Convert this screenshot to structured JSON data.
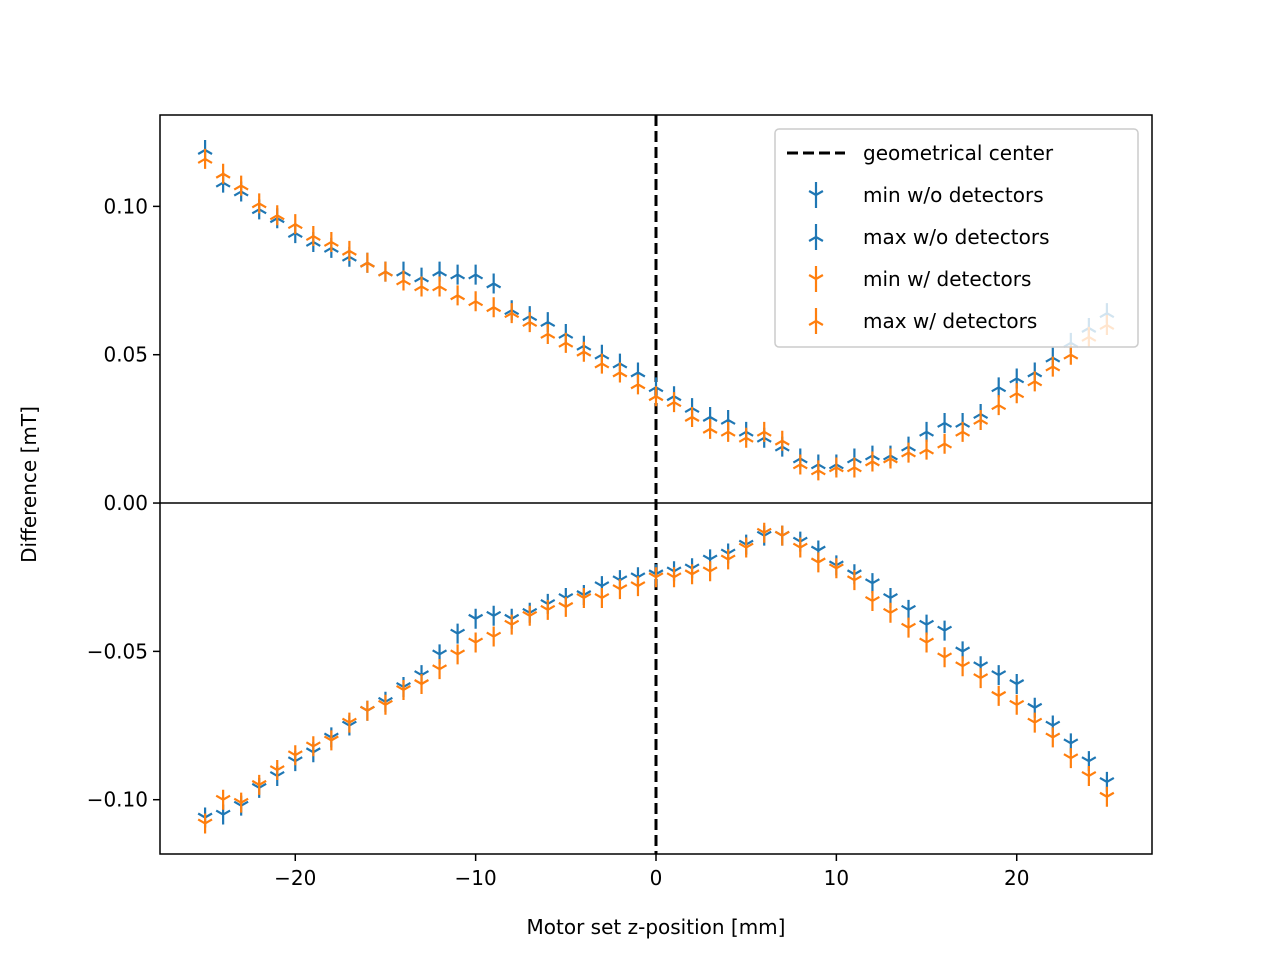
{
  "chart_data": {
    "type": "scatter",
    "title": "",
    "xlabel": "Motor set z-position [mm]",
    "ylabel": "Difference [mT]",
    "xlim": [
      -27.5,
      27.5
    ],
    "ylim": [
      -0.1183,
      0.1308
    ],
    "xticks": [
      -20,
      -10,
      0,
      10,
      20
    ],
    "xtick_labels": [
      "−20",
      "−10",
      "0",
      "10",
      "20"
    ],
    "yticks": [
      -0.1,
      -0.05,
      0.0,
      0.05,
      0.1
    ],
    "ytick_labels": [
      "−0.10",
      "−0.05",
      "0.00",
      "0.05",
      "0.10"
    ],
    "grid": false,
    "zero_line": true,
    "legend_position": "upper right",
    "reference_line": {
      "name": "geometrical center",
      "x": 0,
      "style": "dashed",
      "color": "#000000"
    },
    "x": [
      -25,
      -24,
      -23,
      -22,
      -21,
      -20,
      -19,
      -18,
      -17,
      -16,
      -15,
      -14,
      -13,
      -12,
      -11,
      -10,
      -9,
      -8,
      -7,
      -6,
      -5,
      -4,
      -3,
      -2,
      -1,
      0,
      1,
      2,
      3,
      4,
      5,
      6,
      7,
      8,
      9,
      10,
      11,
      12,
      13,
      14,
      15,
      16,
      17,
      18,
      19,
      20,
      21,
      22,
      23,
      24,
      25
    ],
    "series": [
      {
        "name": "min w/o detectors",
        "color": "#1f77b4",
        "marker": "tri_down",
        "values": [
          -0.106,
          -0.105,
          -0.102,
          -0.096,
          -0.092,
          -0.087,
          -0.084,
          -0.079,
          -0.075,
          -0.07,
          -0.067,
          -0.062,
          -0.058,
          -0.051,
          -0.044,
          -0.039,
          -0.038,
          -0.039,
          -0.037,
          -0.034,
          -0.032,
          -0.031,
          -0.028,
          -0.026,
          -0.025,
          -0.024,
          -0.023,
          -0.022,
          -0.019,
          -0.017,
          -0.014,
          -0.011,
          -0.011,
          -0.013,
          -0.016,
          -0.021,
          -0.024,
          -0.027,
          -0.032,
          -0.036,
          -0.041,
          -0.043,
          -0.05,
          -0.055,
          -0.058,
          -0.061,
          -0.069,
          -0.075,
          -0.081,
          -0.087,
          -0.094
        ]
      },
      {
        "name": "max w/o detectors",
        "color": "#1f77b4",
        "marker": "tri_up",
        "values": [
          0.119,
          0.108,
          0.105,
          0.099,
          0.096,
          0.091,
          0.088,
          0.086,
          0.083,
          0.081,
          0.078,
          0.078,
          0.076,
          0.078,
          0.077,
          0.077,
          0.074,
          0.065,
          0.063,
          0.061,
          0.057,
          0.053,
          0.05,
          0.047,
          0.044,
          0.039,
          0.036,
          0.032,
          0.029,
          0.028,
          0.024,
          0.022,
          0.019,
          0.015,
          0.013,
          0.013,
          0.015,
          0.016,
          0.016,
          0.019,
          0.024,
          0.027,
          0.027,
          0.03,
          0.039,
          0.042,
          0.044,
          0.049,
          0.054,
          0.059,
          0.064
        ]
      },
      {
        "name": "min w/ detectors",
        "color": "#ff7f0e",
        "marker": "tri_down",
        "values": [
          -0.108,
          -0.1,
          -0.101,
          -0.095,
          -0.09,
          -0.085,
          -0.082,
          -0.08,
          -0.074,
          -0.07,
          -0.068,
          -0.063,
          -0.061,
          -0.056,
          -0.051,
          -0.047,
          -0.045,
          -0.041,
          -0.038,
          -0.036,
          -0.035,
          -0.032,
          -0.032,
          -0.029,
          -0.028,
          -0.025,
          -0.025,
          -0.024,
          -0.023,
          -0.019,
          -0.015,
          -0.01,
          -0.011,
          -0.015,
          -0.02,
          -0.022,
          -0.026,
          -0.033,
          -0.037,
          -0.042,
          -0.047,
          -0.052,
          -0.055,
          -0.059,
          -0.065,
          -0.068,
          -0.074,
          -0.079,
          -0.086,
          -0.092,
          -0.099
        ]
      },
      {
        "name": "max w/ detectors",
        "color": "#ff7f0e",
        "marker": "tri_up",
        "values": [
          0.116,
          0.111,
          0.107,
          0.101,
          0.097,
          0.094,
          0.09,
          0.088,
          0.085,
          0.081,
          0.078,
          0.075,
          0.073,
          0.073,
          0.07,
          0.068,
          0.066,
          0.064,
          0.061,
          0.057,
          0.054,
          0.051,
          0.047,
          0.044,
          0.04,
          0.036,
          0.034,
          0.029,
          0.025,
          0.024,
          0.022,
          0.024,
          0.021,
          0.013,
          0.011,
          0.012,
          0.012,
          0.014,
          0.015,
          0.017,
          0.018,
          0.02,
          0.024,
          0.028,
          0.033,
          0.037,
          0.041,
          0.046,
          0.05,
          0.056,
          0.06
        ]
      }
    ]
  }
}
